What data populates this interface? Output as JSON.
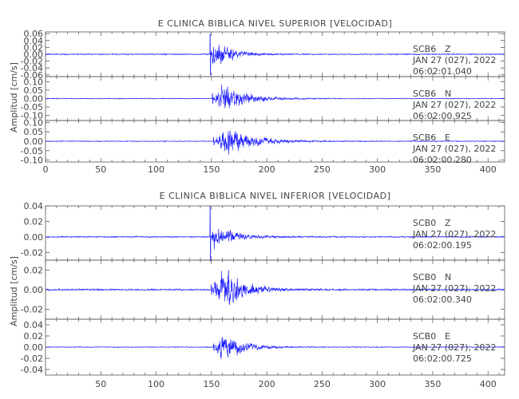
{
  "chart_data": [
    {
      "type": "line",
      "title": "E CLINICA BIBLICA NIVEL SUPERIOR [VELOCIDAD]",
      "ylabel": "Amplitud [cm/s]",
      "xlim": [
        0,
        415
      ],
      "xticks": [
        0,
        50,
        100,
        150,
        200,
        250,
        300,
        350,
        400
      ],
      "xtick_labels": [
        "0",
        "50",
        "100",
        "150",
        "200",
        "250",
        "300",
        "350",
        "400"
      ],
      "trace_color": "#1a1aff",
      "traces": [
        {
          "station": "SCB6",
          "component": "Z",
          "date": "JAN 27 (027), 2022",
          "time": "06:02:01.040",
          "ylim": [
            -0.065,
            0.065
          ],
          "yticks": [
            -0.06,
            -0.04,
            -0.02,
            0.0,
            0.02,
            0.04,
            0.06
          ],
          "ytick_labels": [
            "-0.06",
            "-0.04",
            "-0.02",
            "0.00",
            "0.02",
            "0.04",
            "0.06"
          ],
          "noise": 0.002,
          "onset": 149,
          "peak": 0.05,
          "spike": 0.06,
          "decay": 16,
          "ramp": 3
        },
        {
          "station": "SCB6",
          "component": "N",
          "date": "JAN 27 (027), 2022",
          "time": "06:02:00.925",
          "ylim": [
            -0.13,
            0.13
          ],
          "yticks": [
            -0.1,
            -0.05,
            0.0,
            0.05,
            0.1
          ],
          "ytick_labels": [
            "-0.10",
            "-0.05",
            "0.00",
            "0.05",
            "0.10"
          ],
          "noise": 0.003,
          "onset": 151,
          "peak": 0.11,
          "spike": 0.03,
          "decay": 20,
          "ramp": 10
        },
        {
          "station": "SCB6",
          "component": "E",
          "date": "JAN 27 (027), 2022",
          "time": "06:02:00.280",
          "ylim": [
            -0.11,
            0.11
          ],
          "yticks": [
            -0.1,
            -0.05,
            0.0,
            0.05,
            0.1
          ],
          "ytick_labels": [
            "-0.10",
            "-0.05",
            "0.00",
            "0.05",
            "0.10"
          ],
          "noise": 0.003,
          "onset": 152,
          "peak": 0.1,
          "spike": 0.02,
          "decay": 22,
          "ramp": 12
        }
      ]
    },
    {
      "type": "line",
      "title": "E CLINICA BIBLICA NIVEL INFERIOR [VELOCIDAD]",
      "ylabel": "Amplitud [cm/s]",
      "xlim": [
        0,
        415
      ],
      "xticks": [
        50,
        100,
        150,
        200,
        250,
        300,
        350,
        400
      ],
      "xtick_labels": [
        "50",
        "100",
        "150",
        "200",
        "250",
        "300",
        "350",
        "400"
      ],
      "trace_color": "#1a1aff",
      "traces": [
        {
          "station": "SCB0",
          "component": "Z",
          "date": "JAN 27 (027), 2022",
          "time": "06:02:00.195",
          "ylim": [
            -0.03,
            0.04
          ],
          "yticks": [
            -0.02,
            0.0,
            0.02,
            0.04
          ],
          "ytick_labels": [
            "-0.02",
            "0.00",
            "0.02",
            "0.04"
          ],
          "noise": 0.001,
          "onset": 149,
          "peak": 0.016,
          "spike": 0.04,
          "decay": 20,
          "ramp": 3
        },
        {
          "station": "SCB0",
          "component": "N",
          "date": "JAN 27 (027), 2022",
          "time": "06:02:00.340",
          "ylim": [
            -0.03,
            0.03
          ],
          "yticks": [
            -0.02,
            0.0,
            0.02
          ],
          "ytick_labels": [
            "-0.02",
            "0.00",
            "0.02"
          ],
          "noise": 0.001,
          "onset": 150,
          "peak": 0.026,
          "spike": 0.005,
          "decay": 20,
          "ramp": 9
        },
        {
          "station": "SCB0",
          "component": "E",
          "date": "JAN 27 (027), 2022",
          "time": "06:02:00.725",
          "ylim": [
            -0.05,
            0.05
          ],
          "yticks": [
            -0.04,
            -0.02,
            0.0,
            0.02,
            0.04
          ],
          "ytick_labels": [
            "-0.04",
            "-0.02",
            "0.00",
            "0.02",
            "0.04"
          ],
          "noise": 0.001,
          "onset": 152,
          "peak": 0.03,
          "spike": 0.006,
          "decay": 18,
          "ramp": 8
        }
      ]
    }
  ]
}
